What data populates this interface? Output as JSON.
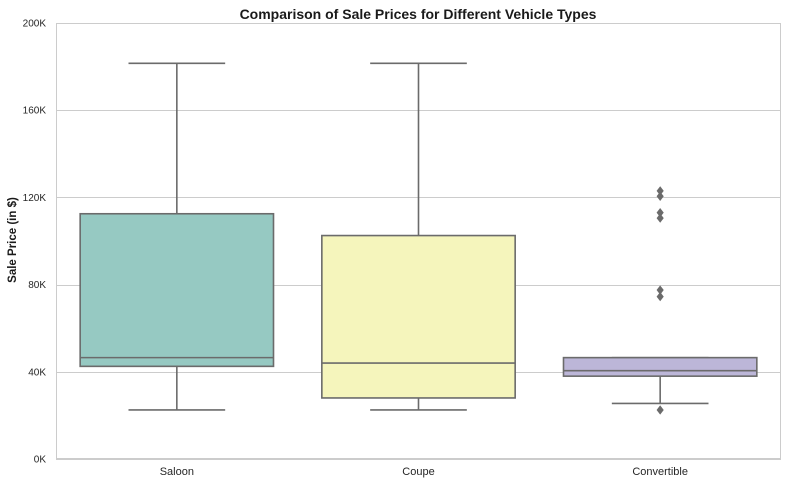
{
  "chart_data": {
    "type": "box",
    "title": "Comparison of Sale Prices for Different Vehicle Types",
    "xlabel": "",
    "ylabel": "Sale Price (in $)",
    "ylim": [
      0,
      200000
    ],
    "y_ticks": [
      0,
      40000,
      80000,
      120000,
      160000,
      200000
    ],
    "y_tick_labels": [
      "0K",
      "40K",
      "80K",
      "120K",
      "160K",
      "200K"
    ],
    "grid": "horizontal",
    "categories": [
      "Saloon",
      "Coupe",
      "Convertible"
    ],
    "boxes": [
      {
        "category": "Saloon",
        "whisker_low": 22500,
        "q1": 42500,
        "median": 46500,
        "q3": 112500,
        "whisker_high": 181500,
        "outliers": [],
        "color": "#96c9c2"
      },
      {
        "category": "Coupe",
        "whisker_low": 22500,
        "q1": 28000,
        "median": 44000,
        "q3": 102500,
        "whisker_high": 181500,
        "outliers": [],
        "color": "#f5f5bc"
      },
      {
        "category": "Convertible",
        "whisker_low": 25500,
        "q1": 38000,
        "median": 40500,
        "q3": 46500,
        "whisker_high": 46500,
        "outliers": [
          22500,
          74500,
          77500,
          110500,
          113000,
          120500,
          123000
        ],
        "color": "#bcb6d8"
      }
    ],
    "edge_color": "#6b6b6b"
  }
}
